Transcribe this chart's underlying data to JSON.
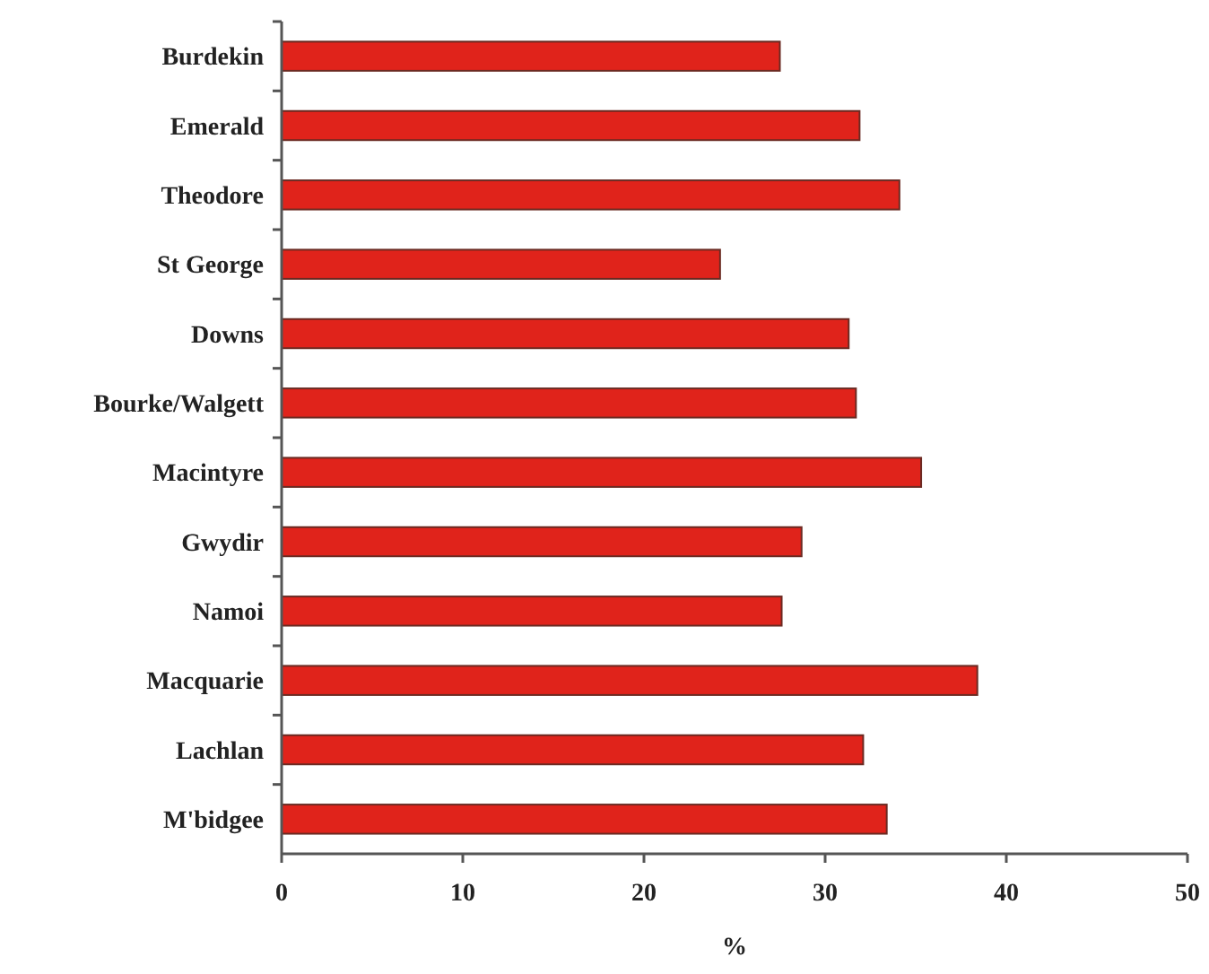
{
  "chart_data": {
    "type": "bar",
    "orientation": "horizontal",
    "xlabel": "%",
    "categories": [
      "Burdekin",
      "Emerald",
      "Theodore",
      "St George",
      "Downs",
      "Bourke/Walgett",
      "Macintyre",
      "Gwydir",
      "Namoi",
      "Macquarie",
      "Lachlan",
      "M'bidgee"
    ],
    "values": [
      27.5,
      31.9,
      34.1,
      24.2,
      31.3,
      31.7,
      35.3,
      28.7,
      27.6,
      38.4,
      32.1,
      33.4
    ],
    "color": "#e0231b",
    "xlim": [
      0,
      50
    ],
    "xticks": [
      0,
      10,
      20,
      30,
      40,
      50
    ],
    "grid": false
  }
}
